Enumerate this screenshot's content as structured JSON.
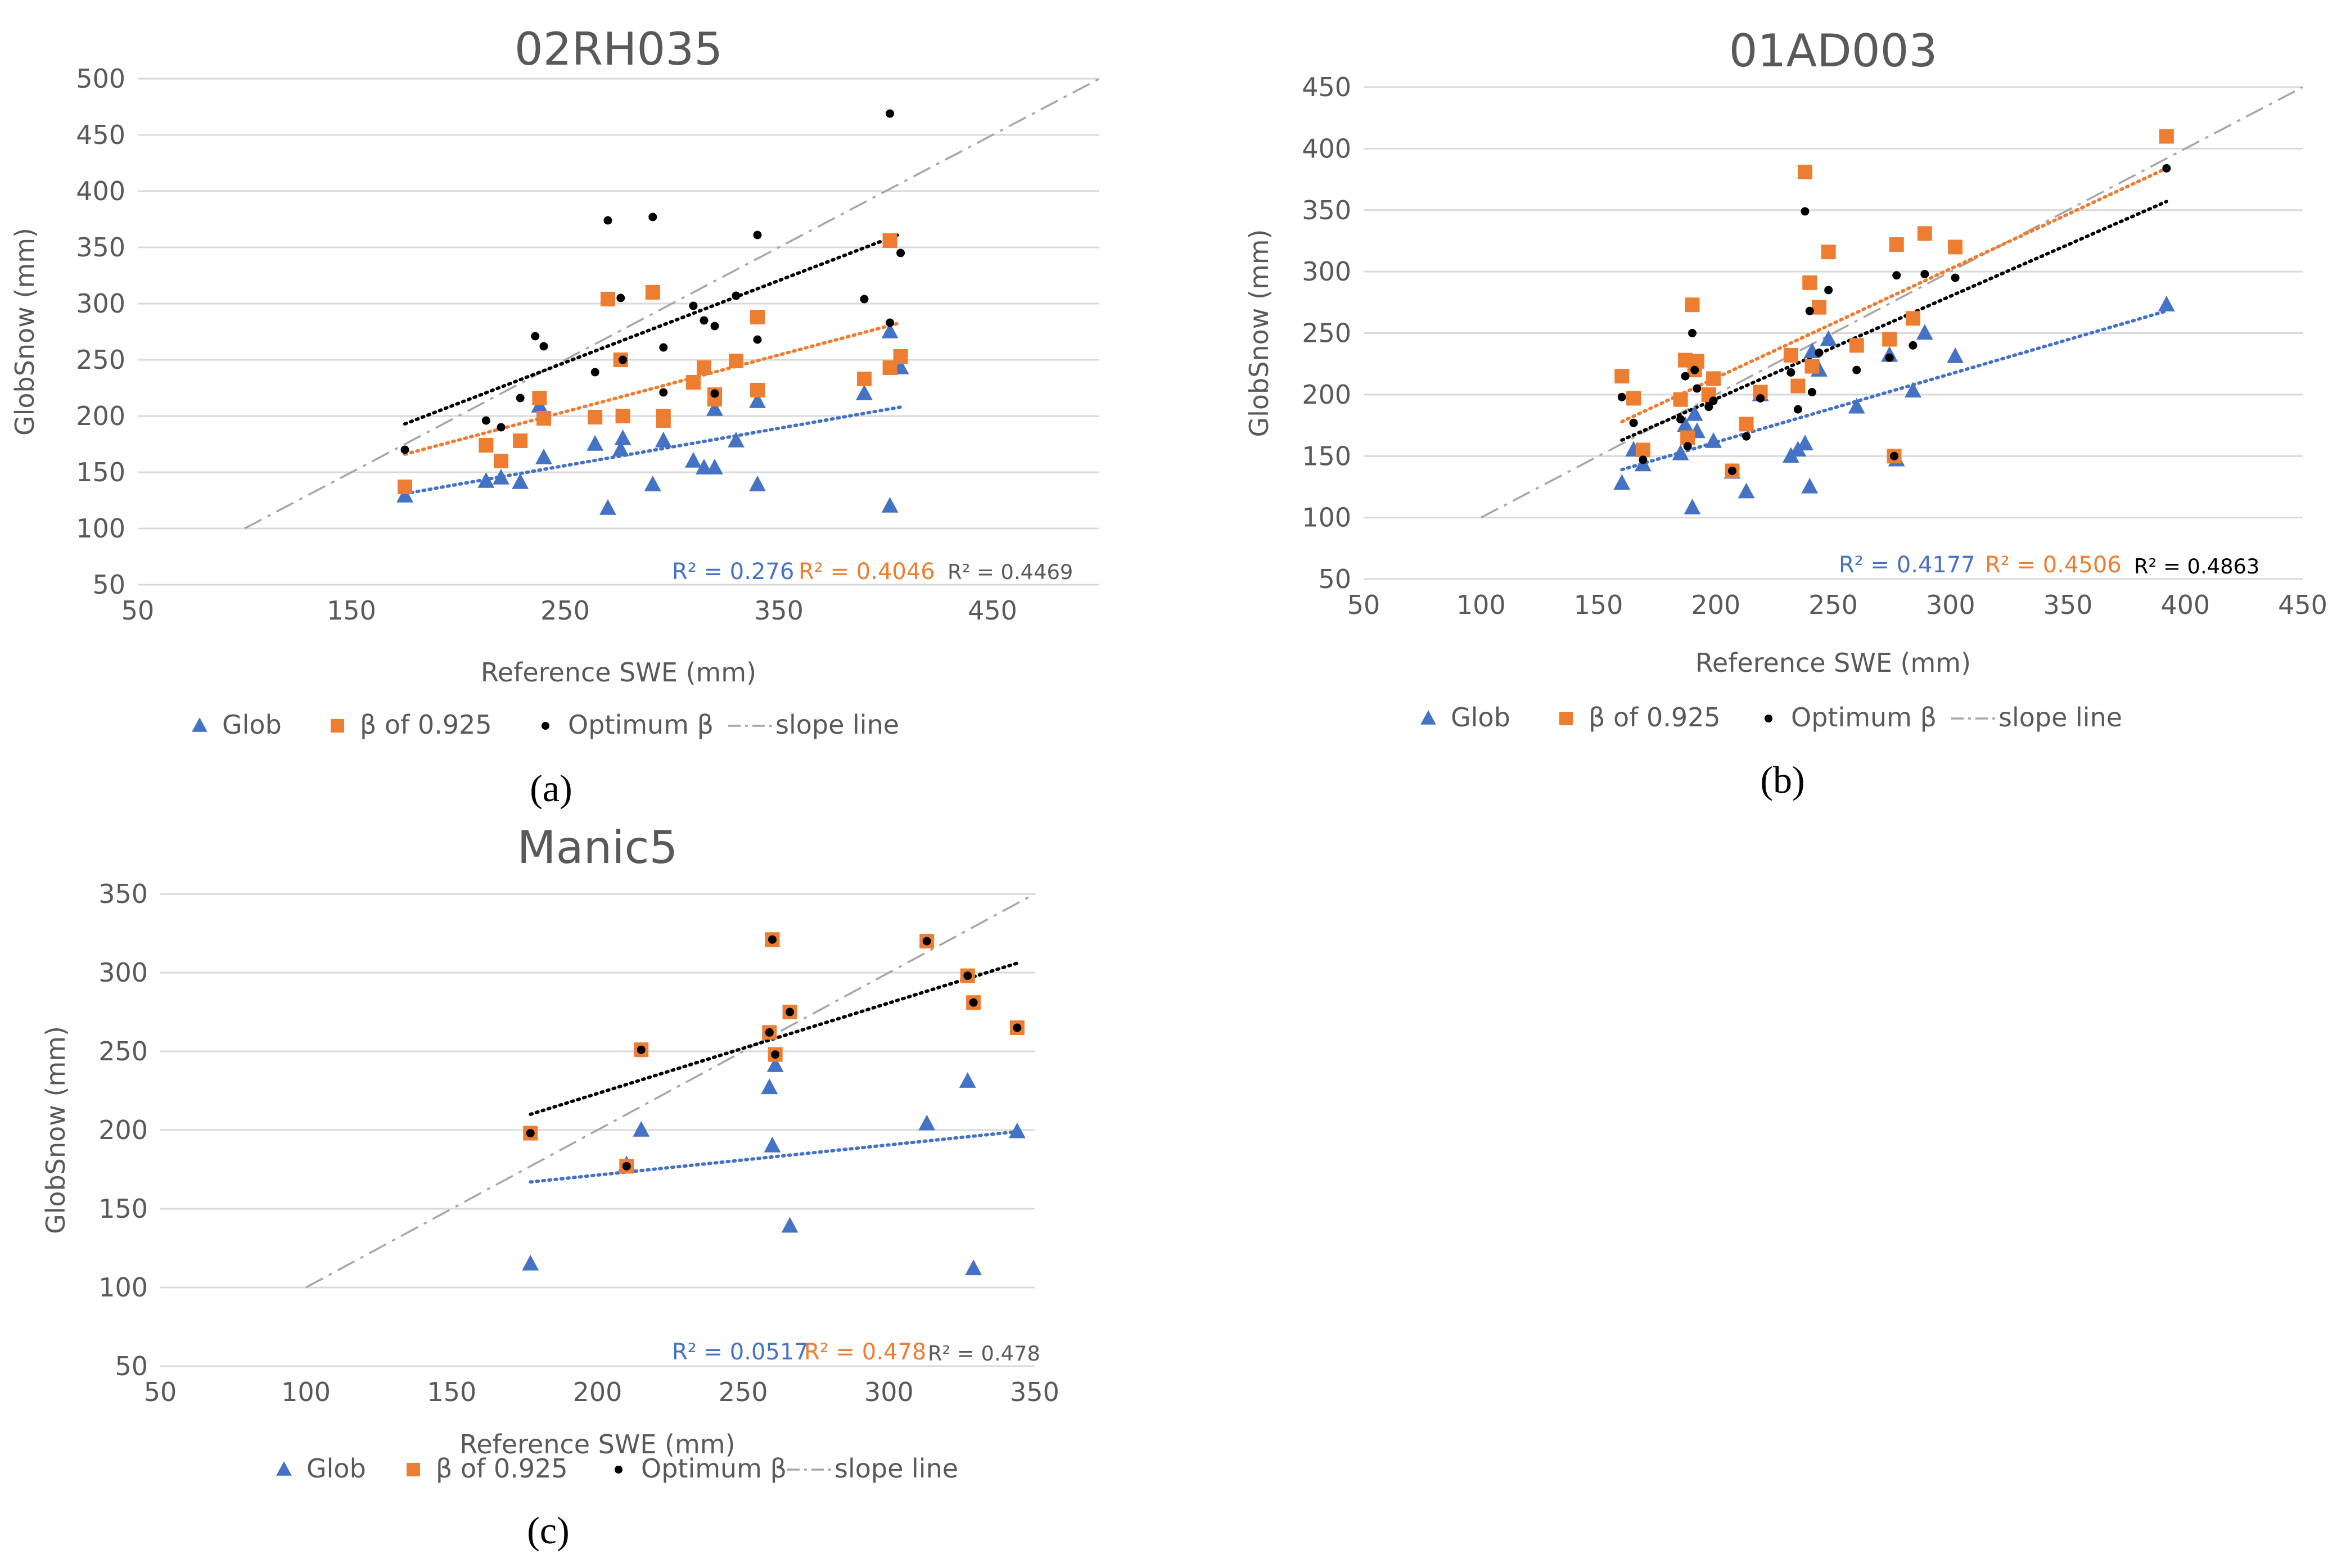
{
  "colors": {
    "glob": "#4472C4",
    "beta": "#ED7D31",
    "optimum": "#000000",
    "slope": "#A6A6A6",
    "grid": "#D9D9D9",
    "text": "#595959"
  },
  "chart_data": [
    {
      "type": "scatter",
      "title": "02RH035",
      "xlabel": "Reference SWE (mm)",
      "ylabel": "GlobSnow (mm)",
      "xlim": [
        50,
        500
      ],
      "ylim": [
        50,
        500
      ],
      "xticks": [
        50,
        150,
        250,
        350,
        450
      ],
      "yticks": [
        50,
        100,
        150,
        200,
        250,
        300,
        350,
        400,
        450,
        500
      ],
      "caption": "(a)",
      "legend": [
        "Glob",
        "β of 0.925",
        "Optimum β",
        "slope line"
      ],
      "r2_glob": "R² = 0.276",
      "r2_beta": "R² = 0.4046",
      "r2_opt": "R² = 0.4469",
      "slope_line": {
        "x": [
          100,
          500
        ],
        "y": [
          100,
          500
        ]
      },
      "series": [
        {
          "name": "Glob",
          "x": [
            175,
            213,
            220,
            229,
            238,
            240,
            264,
            270,
            276,
            277,
            291,
            296,
            310,
            315,
            320,
            320,
            330,
            340,
            340,
            390,
            402,
            402,
            407
          ],
          "y": [
            129,
            142,
            145,
            141,
            209,
            163,
            175,
            118,
            170,
            180,
            139,
            178,
            160,
            154,
            154,
            206,
            178,
            213,
            139,
            220,
            120,
            275,
            243
          ]
        },
        {
          "name": "β of 0.925",
          "x": [
            175,
            213,
            220,
            229,
            238,
            240,
            264,
            270,
            276,
            277,
            291,
            296,
            296,
            310,
            315,
            320,
            320,
            330,
            340,
            340,
            390,
            402,
            402,
            407
          ],
          "y": [
            137,
            174,
            160,
            178,
            216,
            198,
            199,
            304,
            250,
            200,
            310,
            200,
            196,
            230,
            243,
            219,
            215,
            249,
            288,
            223,
            233,
            356,
            243,
            253
          ]
        },
        {
          "name": "Optimum β",
          "x": [
            175,
            213,
            220,
            229,
            236,
            240,
            264,
            270,
            276,
            277,
            291,
            296,
            296,
            310,
            315,
            320,
            320,
            330,
            340,
            340,
            390,
            402,
            402,
            407
          ],
          "y": [
            170,
            196,
            190,
            216,
            271,
            262,
            239,
            374,
            305,
            250,
            377,
            261,
            221,
            298,
            285,
            280,
            220,
            307,
            361,
            268,
            304,
            469,
            283,
            345
          ]
        }
      ],
      "trendlines": [
        {
          "name": "Glob",
          "x": [
            175,
            407
          ],
          "y": [
            131,
            208
          ]
        },
        {
          "name": "β of 0.925",
          "x": [
            175,
            407
          ],
          "y": [
            166,
            283
          ]
        },
        {
          "name": "Optimum β",
          "x": [
            175,
            407
          ],
          "y": [
            193,
            362
          ]
        }
      ]
    },
    {
      "type": "scatter",
      "title": "01AD003",
      "xlabel": "Reference SWE (mm)",
      "ylabel": "GlobSnow (mm)",
      "xlim": [
        50,
        450
      ],
      "ylim": [
        50,
        450
      ],
      "xticks": [
        50,
        100,
        150,
        200,
        250,
        300,
        350,
        400,
        450
      ],
      "yticks": [
        50,
        100,
        150,
        200,
        250,
        300,
        350,
        400,
        450
      ],
      "caption": "(b)",
      "legend": [
        "Glob",
        "β of 0.925",
        "Optimum β",
        "slope line"
      ],
      "r2_glob": "R² = 0.4177",
      "r2_beta": "R² = 0.4506",
      "r2_opt": "R² = 0.4863",
      "slope_line": {
        "x": [
          100,
          450
        ],
        "y": [
          100,
          450
        ]
      },
      "series": [
        {
          "name": "Glob",
          "x": [
            160,
            165,
            169,
            185,
            187,
            190,
            191,
            192,
            199,
            207,
            213,
            219,
            232,
            235,
            238,
            240,
            241,
            244,
            248,
            260,
            274,
            277,
            284,
            289,
            302,
            392
          ],
          "y": [
            128,
            155,
            143,
            152,
            175,
            108,
            184,
            170,
            162,
            137,
            121,
            200,
            150,
            155,
            160,
            125,
            235,
            220,
            245,
            190,
            232,
            147,
            203,
            250,
            231,
            273
          ]
        },
        {
          "name": "β of 0.925",
          "x": [
            160,
            165,
            169,
            185,
            187,
            188,
            190,
            191,
            192,
            197,
            199,
            207,
            213,
            219,
            232,
            235,
            238,
            240,
            241,
            244,
            248,
            260,
            274,
            276,
            277,
            284,
            289,
            302,
            392
          ],
          "y": [
            215,
            197,
            155,
            196,
            228,
            165,
            273,
            220,
            227,
            200,
            213,
            138,
            176,
            202,
            232,
            207,
            381,
            291,
            223,
            271,
            316,
            240,
            245,
            150,
            322,
            262,
            331,
            320,
            410
          ]
        },
        {
          "name": "Optimum β",
          "x": [
            160,
            165,
            169,
            185,
            187,
            188,
            190,
            191,
            192,
            197,
            199,
            207,
            213,
            219,
            232,
            235,
            238,
            240,
            241,
            244,
            248,
            260,
            274,
            276,
            277,
            284,
            289,
            302,
            392
          ],
          "y": [
            198,
            177,
            147,
            180,
            215,
            158,
            250,
            220,
            205,
            190,
            195,
            138,
            166,
            197,
            218,
            188,
            349,
            268,
            202,
            234,
            285,
            220,
            230,
            150,
            297,
            240,
            298,
            295,
            384
          ]
        }
      ],
      "trendlines": [
        {
          "name": "Glob",
          "x": [
            160,
            392
          ],
          "y": [
            139,
            268
          ]
        },
        {
          "name": "β of 0.925",
          "x": [
            160,
            392
          ],
          "y": [
            178,
            384
          ]
        },
        {
          "name": "Optimum β",
          "x": [
            160,
            392
          ],
          "y": [
            163,
            357
          ]
        }
      ]
    },
    {
      "type": "scatter",
      "title": "Manic5",
      "xlabel": "Reference SWE (mm)",
      "ylabel": "GlobSnow (mm)",
      "xlim": [
        50,
        350
      ],
      "ylim": [
        50,
        350
      ],
      "xticks": [
        50,
        100,
        150,
        200,
        250,
        300,
        350
      ],
      "yticks": [
        50,
        100,
        150,
        200,
        250,
        300,
        350
      ],
      "caption": "(c)",
      "legend": [
        "Glob",
        "β of 0.925",
        "Optimum β",
        "slope line"
      ],
      "r2_glob": "R² = 0.0517",
      "r2_beta": "R² = 0.478",
      "r2_opt": "R² = 0.478",
      "slope_line": {
        "x": [
          100,
          350
        ],
        "y": [
          100,
          350
        ]
      },
      "series": [
        {
          "name": "Glob",
          "x": [
            177,
            210,
            215,
            259,
            260,
            261,
            266,
            313,
            327,
            329,
            344
          ],
          "y": [
            115,
            178,
            200,
            227,
            190,
            241,
            139,
            204,
            231,
            112,
            199
          ]
        },
        {
          "name": "β of 0.925",
          "x": [
            177,
            210,
            215,
            259,
            260,
            261,
            266,
            313,
            327,
            329,
            344
          ],
          "y": [
            198,
            177,
            251,
            262,
            321,
            248,
            275,
            320,
            298,
            281,
            265
          ]
        },
        {
          "name": "Optimum β",
          "x": [
            177,
            210,
            215,
            259,
            260,
            261,
            266,
            313,
            327,
            329,
            344
          ],
          "y": [
            198,
            177,
            251,
            262,
            321,
            248,
            275,
            320,
            298,
            281,
            265
          ]
        }
      ],
      "trendlines": [
        {
          "name": "Glob",
          "x": [
            177,
            344
          ],
          "y": [
            167,
            199
          ]
        },
        {
          "name": "Optimum β",
          "x": [
            177,
            344
          ],
          "y": [
            210,
            306
          ]
        }
      ]
    }
  ]
}
